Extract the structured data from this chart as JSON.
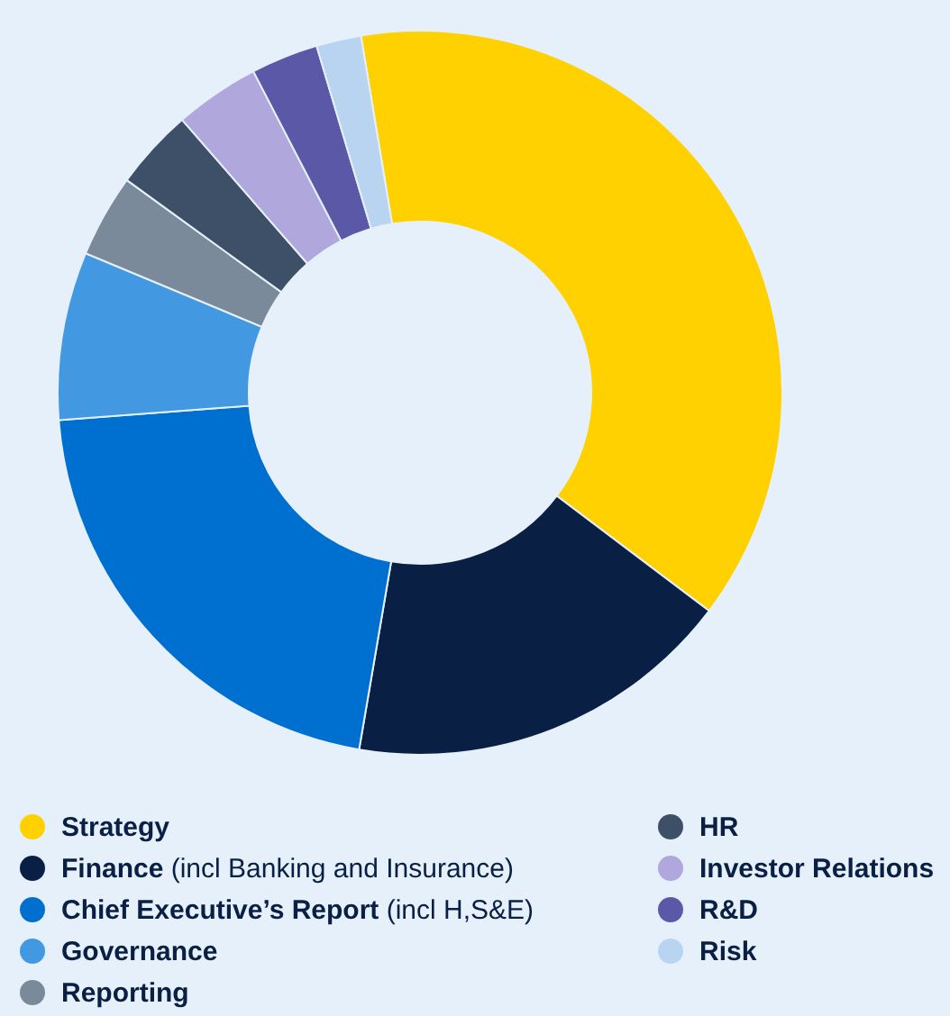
{
  "chart_data": {
    "type": "donut",
    "categories": [
      "Strategy",
      "Finance (incl Banking and Insurance)",
      "Chief Executive’s Report (incl H,S&E)",
      "Governance",
      "Reporting",
      "HR",
      "Investor Relations",
      "R&D",
      "Risk"
    ],
    "values": [
      37.9,
      17.4,
      21.1,
      7.5,
      3.7,
      3.6,
      3.8,
      3.0,
      2.0
    ],
    "colors": [
      "#ffd100",
      "#0a1f44",
      "#0070d0",
      "#4299e1",
      "#7b8a9a",
      "#3d5068",
      "#b0a8dc",
      "#5b58a8",
      "#b8d4f0"
    ],
    "legend": "bottom"
  }
}
